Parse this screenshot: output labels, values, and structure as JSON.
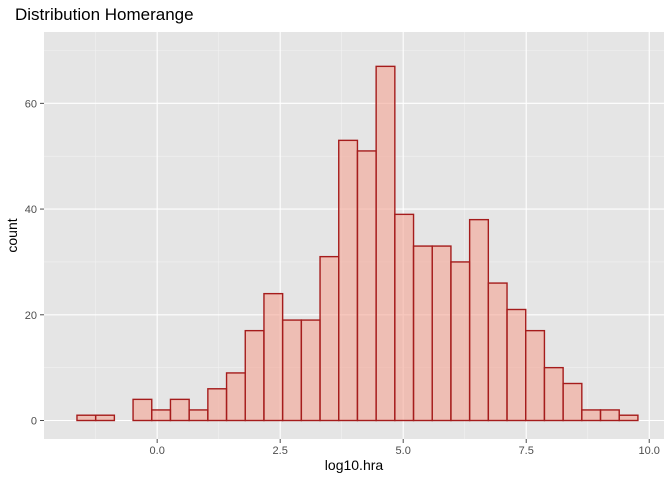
{
  "chart_data": {
    "type": "bar",
    "title": "Distribution Homerange",
    "xlabel": "log10.hra",
    "ylabel": "count",
    "xlim": [
      -2.3,
      10.3
    ],
    "ylim": [
      -3.5,
      73.5
    ],
    "xticks": [
      0.0,
      2.5,
      5.0,
      7.5,
      10.0
    ],
    "xtick_labels": [
      "0.0",
      "2.5",
      "5.0",
      "7.5",
      "10.0"
    ],
    "yticks": [
      0,
      20,
      40,
      60
    ],
    "ytick_labels": [
      "0",
      "20",
      "40",
      "60"
    ],
    "grid": true,
    "bin_width": 0.38,
    "bin_centers": [
      -1.44,
      -1.06,
      -0.68,
      -0.3,
      0.08,
      0.46,
      0.84,
      1.22,
      1.6,
      1.98,
      2.36,
      2.74,
      3.12,
      3.5,
      3.88,
      4.26,
      4.64,
      5.02,
      5.4,
      5.78,
      6.16,
      6.54,
      6.92,
      7.3,
      7.68,
      8.06,
      8.44,
      8.82,
      9.2,
      9.58
    ],
    "values": [
      1,
      1,
      0,
      4,
      2,
      4,
      2,
      6,
      9,
      17,
      24,
      19,
      19,
      31,
      53,
      51,
      67,
      39,
      33,
      33,
      30,
      38,
      26,
      21,
      17,
      10,
      7,
      2,
      2,
      1
    ],
    "colors": {
      "fill": "#f4a393",
      "fill_opacity": 0.6,
      "stroke": "#a51c1c",
      "panel": "#e5e5e5",
      "grid_major": "#ffffff",
      "tick": "#4d4d4d"
    }
  }
}
